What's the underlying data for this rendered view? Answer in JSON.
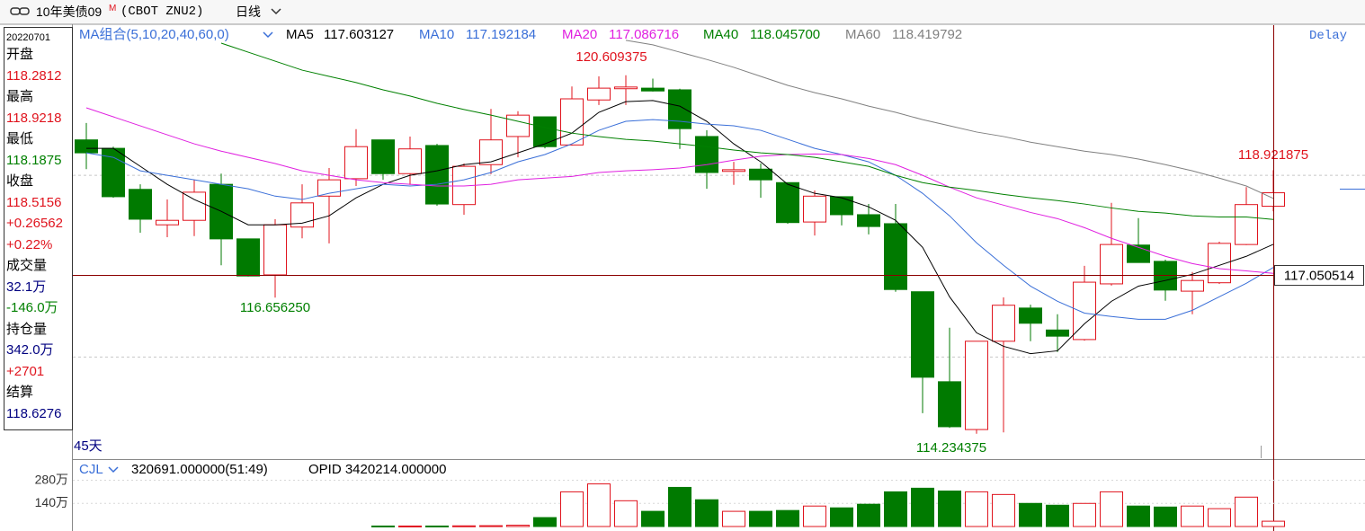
{
  "header": {
    "symbol": "10年美债09",
    "flag": "M",
    "code": "(CBOT ZNU2)",
    "period": "日线",
    "status": "Delay"
  },
  "sidebar": {
    "date": "20220701",
    "items": [
      {
        "text": "开盘",
        "color": "#000000"
      },
      {
        "text": "118.2812",
        "color": "#e0141e"
      },
      {
        "text": "最高",
        "color": "#000000"
      },
      {
        "text": "118.9218",
        "color": "#e0141e"
      },
      {
        "text": "最低",
        "color": "#000000"
      },
      {
        "text": "118.1875",
        "color": "#008000"
      },
      {
        "text": "收盘",
        "color": "#000000"
      },
      {
        "text": "118.5156",
        "color": "#e0141e"
      },
      {
        "text": "+0.26562",
        "color": "#e0141e"
      },
      {
        "text": "+0.22%",
        "color": "#e0141e"
      },
      {
        "text": "成交量",
        "color": "#000000"
      },
      {
        "text": "32.1万",
        "color": "#000080"
      },
      {
        "text": "-146.0万",
        "color": "#008000"
      },
      {
        "text": "持仓量",
        "color": "#000000"
      },
      {
        "text": "342.0万",
        "color": "#000080"
      },
      {
        "text": "+2701",
        "color": "#e0141e"
      },
      {
        "text": "结算",
        "color": "#000000"
      },
      {
        "text": "118.6276",
        "color": "#000080"
      }
    ]
  },
  "chart_data": [
    {
      "type": "candlestick",
      "legend_title": "MA组合(5,10,20,40,60,0)",
      "period": "45天",
      "ylim": [
        113.8,
        121.5
      ],
      "grid_lines": [
        118.83,
        115.6
      ],
      "crosshair": 117.050514,
      "up_color": "#e0141e",
      "down_color": "#007a00",
      "open": [
        119.46,
        119.31,
        118.58,
        117.95,
        118.03,
        118.67,
        117.7,
        117.06,
        117.91,
        118.46,
        118.77,
        119.46,
        118.86,
        119.36,
        118.31,
        119.02,
        119.52,
        119.87,
        119.37,
        120.17,
        120.37,
        120.38,
        120.35,
        119.52,
        118.9,
        118.94,
        118.7,
        118.0,
        118.45,
        118.13,
        117.97,
        116.76,
        115.16,
        114.31,
        115.88,
        116.47,
        116.08,
        115.91,
        116.9,
        117.59,
        117.3,
        116.77,
        116.92,
        117.6,
        118.28
      ],
      "high": [
        119.76,
        119.34,
        118.67,
        118.4,
        118.75,
        118.86,
        117.7,
        118.05,
        118.67,
        118.96,
        119.65,
        119.46,
        119.52,
        119.39,
        119.04,
        120.01,
        119.97,
        119.87,
        120.41,
        120.59,
        120.609375,
        120.55,
        120.37,
        119.63,
        119.07,
        119.04,
        118.7,
        118.56,
        118.45,
        118.32,
        118.32,
        116.76,
        116.12,
        115.88,
        116.66,
        116.53,
        116.36,
        117.22,
        118.34,
        118.07,
        117.33,
        117.11,
        117.65,
        118.62,
        118.921875
      ],
      "low": [
        118.94,
        118.43,
        117.81,
        117.73,
        117.75,
        117.23,
        117.03,
        116.65625,
        117.71,
        117.62,
        118.64,
        118.75,
        118.66,
        118.29,
        118.13,
        118.85,
        119.15,
        119.31,
        119.36,
        120.08,
        120.08,
        120.32,
        119.3,
        118.59,
        118.66,
        118.43,
        117.97,
        117.76,
        117.94,
        117.78,
        116.76,
        114.6,
        114.34,
        114.234375,
        114.26,
        115.88,
        115.69,
        115.89,
        116.87,
        117.28,
        116.6,
        116.36,
        116.9,
        117.59,
        118.19
      ],
      "close": [
        119.23,
        118.45,
        118.05,
        118.03,
        118.53,
        117.7,
        117.04,
        117.95,
        118.34,
        118.75,
        119.34,
        118.86,
        119.3,
        118.32,
        118.99,
        119.46,
        119.9,
        119.34,
        120.19,
        120.38,
        120.4,
        120.33,
        119.66,
        118.88,
        118.93,
        118.75,
        117.99,
        118.46,
        118.13,
        117.92,
        116.8,
        115.24,
        114.36,
        115.88,
        116.52,
        116.2,
        115.97,
        116.93,
        117.6,
        117.28,
        116.79,
        116.96,
        117.62,
        118.31,
        118.52
      ],
      "series": [
        {
          "name": "MA5",
          "label": "117.603127",
          "color": "#000000",
          "values": [
            119.31,
            119.31,
            118.99,
            118.67,
            118.4,
            118.19,
            117.95,
            117.95,
            117.98,
            118.11,
            118.43,
            118.67,
            118.83,
            118.91,
            119.02,
            119.07,
            119.23,
            119.39,
            119.58,
            119.95,
            120.14,
            120.16,
            120.06,
            119.79,
            119.39,
            119.07,
            118.67,
            118.51,
            118.43,
            118.27,
            118.03,
            117.55,
            116.67,
            116.03,
            115.79,
            115.66,
            115.71,
            116.19,
            116.59,
            116.86,
            116.96,
            117.07,
            117.23,
            117.39,
            117.603127
          ]
        },
        {
          "name": "MA10",
          "label": "117.192184",
          "color": "#3a6fd8",
          "values": [
            119.23,
            119.15,
            118.91,
            118.83,
            118.75,
            118.67,
            118.59,
            118.46,
            118.4,
            118.51,
            118.59,
            118.67,
            118.64,
            118.67,
            118.75,
            118.88,
            119.07,
            119.2,
            119.39,
            119.63,
            119.79,
            119.82,
            119.79,
            119.74,
            119.71,
            119.63,
            119.47,
            119.31,
            119.2,
            119.07,
            118.83,
            118.51,
            118.11,
            117.63,
            117.23,
            116.86,
            116.59,
            116.38,
            116.32,
            116.27,
            116.27,
            116.43,
            116.67,
            116.91,
            117.192184
          ]
        },
        {
          "name": "MA20",
          "label": "117.086716",
          "color": "#e020e0",
          "values": [
            120.03,
            119.87,
            119.71,
            119.55,
            119.39,
            119.26,
            119.15,
            119.04,
            118.91,
            118.83,
            118.75,
            118.7,
            118.67,
            118.64,
            118.64,
            118.67,
            118.75,
            118.78,
            118.81,
            118.88,
            118.91,
            118.93,
            118.96,
            119.02,
            119.1,
            119.17,
            119.2,
            119.21,
            119.2,
            119.13,
            119.02,
            118.83,
            118.62,
            118.43,
            118.3,
            118.17,
            118.06,
            117.9,
            117.71,
            117.55,
            117.39,
            117.26,
            117.17,
            117.13,
            117.086716
          ]
        },
        {
          "name": "MA40",
          "label": "118.045700",
          "color": "#008000",
          "values": [
            null,
            null,
            null,
            null,
            null,
            121.18,
            121.02,
            120.86,
            120.7,
            120.59,
            120.48,
            120.35,
            120.24,
            120.11,
            120.0,
            119.9,
            119.79,
            119.68,
            119.58,
            119.52,
            119.47,
            119.44,
            119.39,
            119.34,
            119.28,
            119.23,
            119.2,
            119.15,
            119.07,
            118.99,
            118.83,
            118.7,
            118.62,
            118.56,
            118.49,
            118.43,
            118.38,
            118.32,
            118.25,
            118.19,
            118.16,
            118.11,
            118.09,
            118.09,
            118.0457
          ]
        },
        {
          "name": "MA60",
          "label": "118.419792",
          "color": "#808080",
          "values": [
            null,
            null,
            null,
            null,
            null,
            null,
            null,
            null,
            null,
            null,
            null,
            null,
            null,
            null,
            null,
            null,
            null,
            null,
            null,
            null,
            121.23,
            121.15,
            121.02,
            120.89,
            120.75,
            120.59,
            120.43,
            120.3,
            120.19,
            120.06,
            119.95,
            119.82,
            119.71,
            119.6,
            119.52,
            119.42,
            119.34,
            119.26,
            119.2,
            119.12,
            119.02,
            118.91,
            118.78,
            118.64,
            118.419792
          ]
        }
      ],
      "annotations": [
        {
          "text": "120.609375",
          "color": "#e0141e"
        },
        {
          "text": "116.656250",
          "color": "#008000"
        },
        {
          "text": "114.234375",
          "color": "#008000"
        },
        {
          "text": "118.921875",
          "color": "#e0141e"
        }
      ]
    },
    {
      "type": "bar",
      "title": "CJL",
      "summary": "320691.000000(51:49)",
      "opid": "OPID 3420214.000000",
      "ylim": [
        0,
        400
      ],
      "yticks": [
        {
          "value": 140,
          "label": "140万"
        },
        {
          "value": 280,
          "label": "280万"
        }
      ],
      "values": [
        null,
        null,
        null,
        null,
        null,
        null,
        null,
        null,
        null,
        null,
        null,
        3,
        3,
        3,
        4,
        5,
        8,
        54,
        210,
        258,
        156,
        92,
        237,
        162,
        92,
        92,
        97,
        124,
        113,
        135,
        210,
        232,
        215,
        210,
        194,
        140,
        129,
        140,
        210,
        124,
        118,
        124,
        108,
        178,
        32.1
      ]
    }
  ]
}
